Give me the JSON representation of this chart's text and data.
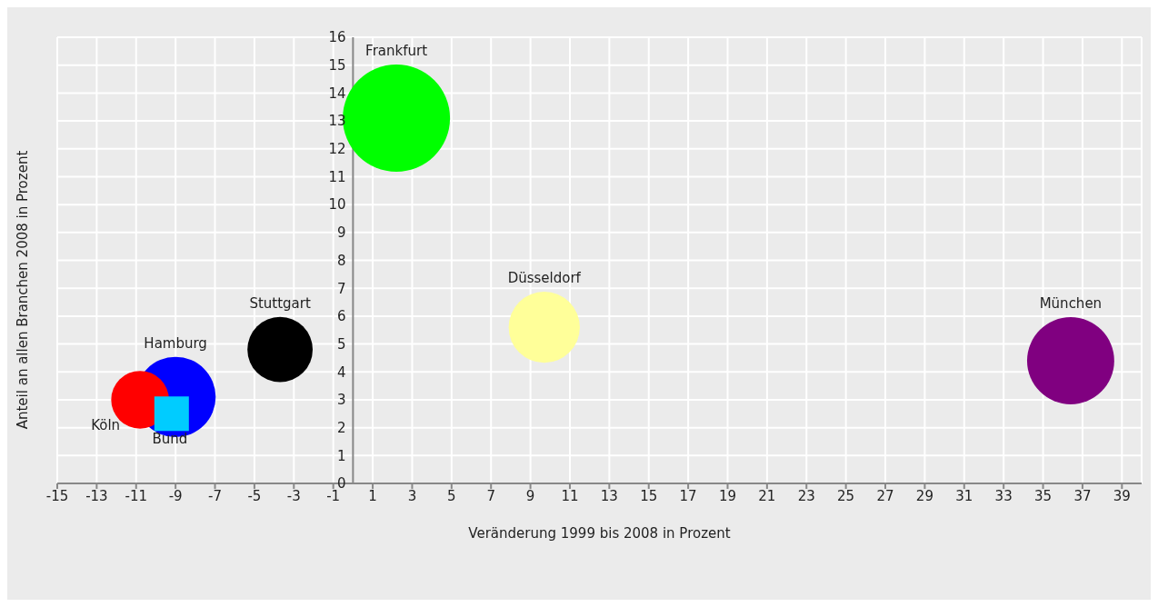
{
  "chart_data": {
    "type": "bubble",
    "xlabel": "Veränderung 1999 bis 2008 in Prozent",
    "ylabel": "Anteil an allen Branchen 2008 in Prozent",
    "xlim": [
      -15,
      40
    ],
    "xticks": [
      -15,
      -13,
      -11,
      -9,
      -7,
      -5,
      -3,
      -1,
      1,
      3,
      5,
      7,
      9,
      11,
      13,
      15,
      17,
      19,
      21,
      23,
      25,
      27,
      29,
      31,
      33,
      35,
      37,
      39
    ],
    "ylim": [
      0,
      16
    ],
    "yticks": [
      0,
      1,
      2,
      3,
      4,
      5,
      6,
      7,
      8,
      9,
      10,
      11,
      12,
      13,
      14,
      15,
      16
    ],
    "grid": true,
    "series": [
      {
        "name": "Frankfurt",
        "color": "#00ff00",
        "x": [
          2.2
        ],
        "values": [
          13.1
        ],
        "sizes": [
          1
        ]
      },
      {
        "name": "München",
        "color": "#800080",
        "x": [
          36.4
        ],
        "values": [
          4.4
        ],
        "sizes": [
          0.66
        ]
      },
      {
        "name": "Düsseldorf",
        "color": "#ffff99",
        "x": [
          9.7
        ],
        "values": [
          5.6
        ],
        "sizes": [
          0.44
        ]
      },
      {
        "name": "Stuttgart",
        "color": "#000000",
        "x": [
          -3.7
        ],
        "values": [
          4.8
        ],
        "sizes": [
          0.37
        ]
      },
      {
        "name": "Hamburg",
        "color": "#0000ff",
        "x": [
          -9
        ],
        "values": [
          3.1
        ],
        "sizes": [
          0.56
        ]
      },
      {
        "name": "Köln",
        "color": "#ff0000",
        "x": [
          -10.8
        ],
        "values": [
          3
        ],
        "sizes": [
          0.29
        ]
      },
      {
        "name": "Bund",
        "type": "scatter",
        "marker": "square",
        "color": "#00ccff",
        "x": [
          -9.2
        ],
        "values": [
          2.5
        ]
      }
    ]
  }
}
